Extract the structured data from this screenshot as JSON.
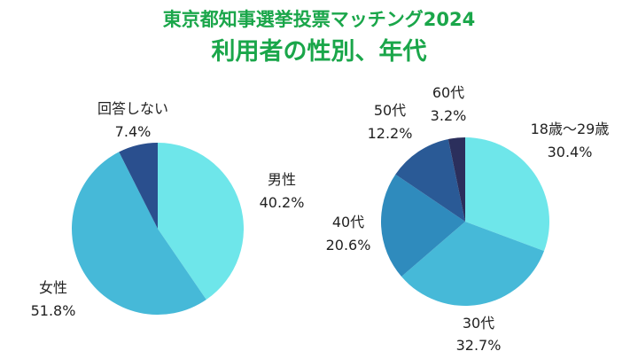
{
  "header": {
    "title": "東京都知事選挙投票マッチング2024",
    "subtitle": "利用者の性別、年代"
  },
  "chart_data": [
    {
      "type": "pie",
      "categories": [
        "男性",
        "女性",
        "回答しない"
      ],
      "values": [
        40.2,
        51.8,
        7.4
      ],
      "value_labels": [
        "40.2%",
        "51.8%",
        "7.4%"
      ],
      "colors": [
        "#6ee6ea",
        "#46b9d8",
        "#2a4f8e"
      ],
      "legend": "none"
    },
    {
      "type": "pie",
      "categories": [
        "18歳～29歳",
        "30代",
        "40代",
        "50代",
        "60代"
      ],
      "values": [
        30.4,
        32.7,
        20.6,
        12.2,
        3.2
      ],
      "value_labels": [
        "30.4%",
        "32.7%",
        "20.6%",
        "12.2%",
        "3.2%"
      ],
      "colors": [
        "#6ee6ea",
        "#46b9d8",
        "#2f8bbd",
        "#2a5a96",
        "#2b2f5c"
      ],
      "legend": "none"
    }
  ]
}
